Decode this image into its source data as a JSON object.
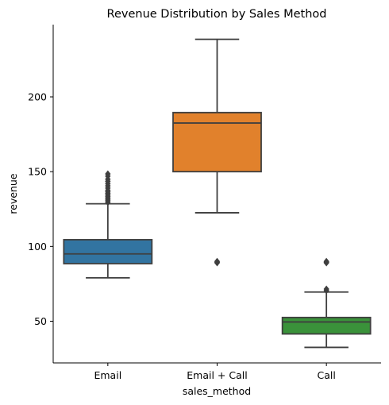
{
  "chart_data": {
    "type": "box",
    "title": "Revenue Distribution by Sales Method",
    "xlabel": "sales_method",
    "ylabel": "revenue",
    "ylim": [
      22,
      252
    ],
    "yticks": [
      50,
      100,
      150,
      200
    ],
    "grid": false,
    "categories": [
      "Email",
      "Email + Call",
      "Call"
    ],
    "colors": [
      "#3274a1",
      "#e1812c",
      "#3a923a"
    ],
    "boxes": [
      {
        "category": "Email",
        "whisker_low": 79,
        "q1": 88.5,
        "median": 95,
        "q3": 104.5,
        "whisker_high": 128.5,
        "outliers": [
          129.5,
          130.5,
          131.5,
          132.5,
          133.5,
          134.5,
          135.5,
          136.5,
          137.5,
          139,
          140.5,
          142,
          143.5,
          145,
          147,
          148.5
        ]
      },
      {
        "category": "Email + Call",
        "whisker_low": 122.5,
        "q1": 150,
        "median": 182.5,
        "q3": 189.5,
        "whisker_high": 238.5,
        "outliers": [
          89,
          89.5,
          90
        ]
      },
      {
        "category": "Call",
        "whisker_low": 32.5,
        "q1": 41.5,
        "median": 49.5,
        "q3": 52.5,
        "whisker_high": 69.5,
        "outliers": [
          70.5,
          71.5,
          89,
          89.5,
          90
        ]
      }
    ]
  }
}
